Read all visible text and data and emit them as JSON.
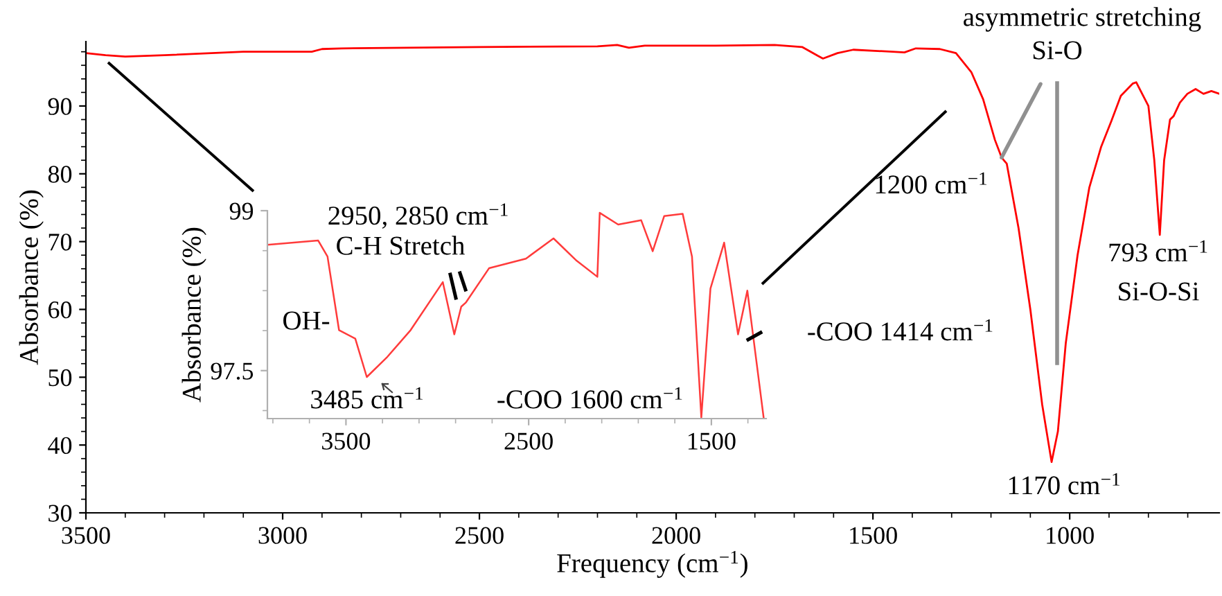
{
  "chart_data": [
    {
      "type": "line",
      "xlabel": "Frequency (cm$^{−1}$)",
      "ylabel": "Absorbance (%)",
      "color": "#ff0000",
      "x": [
        3500,
        3450,
        3400,
        3300,
        3100,
        2926,
        2900,
        2850,
        2500,
        2200,
        2150,
        2120,
        2080,
        1900,
        1750,
        1680,
        1640,
        1627,
        1590,
        1550,
        1450,
        1420,
        1391,
        1330,
        1289,
        1250,
        1220,
        1190,
        1173,
        1160,
        1130,
        1100,
        1070,
        1046,
        1030,
        1010,
        980,
        950,
        920,
        894,
        870,
        840,
        831,
        800,
        785,
        771,
        760,
        745,
        736,
        720,
        701,
        680,
        660,
        640,
        620
      ],
      "values": [
        97.8,
        97.5,
        97.3,
        97.5,
        98.0,
        98.0,
        98.4,
        98.5,
        98.7,
        98.8,
        99.0,
        98.6,
        98.9,
        98.9,
        99.0,
        98.7,
        97.4,
        97.0,
        97.8,
        98.3,
        98.0,
        97.9,
        98.5,
        98.4,
        97.8,
        95,
        91,
        85,
        82.4,
        81.5,
        72,
        60,
        46,
        37.5,
        42,
        55,
        68,
        78,
        84,
        87.8,
        91.5,
        93.3,
        93.5,
        90,
        82,
        71,
        82,
        88,
        88.5,
        90.5,
        91.8,
        92.5,
        91.8,
        92.2,
        91.8
      ],
      "xlim": [
        3500,
        620
      ],
      "ylim": [
        30,
        99.5
      ],
      "xticks": [
        3500,
        3000,
        2500,
        2000,
        1500,
        1000
      ],
      "yticks": [
        30,
        40,
        50,
        60,
        70,
        80,
        90
      ],
      "annotations": [
        "asymmetric stretching",
        {
          "text": "Si-O",
          "x": 1173,
          "y": 82.4
        },
        "1200 cm$^{−1}$",
        "1170 cm$^{−1}$",
        "793 cm$^{−1}$",
        "Si-O-Si",
        "-COO 1414 cm$^{−1}$"
      ]
    },
    {
      "type": "line",
      "ylabel": "Absorbance (%)",
      "color": "#ff3b3b",
      "x": [
        3930,
        3652,
        3601,
        3538,
        3449,
        3386,
        3273,
        3146,
        2970,
        2907,
        2869,
        2843,
        2717,
        2515,
        2364,
        2237,
        2124,
        2111,
        2010,
        1884,
        1821,
        1758,
        1657,
        1606,
        1555,
        1505,
        1430,
        1354,
        1303,
        1214
      ],
      "values": [
        98.68,
        98.72,
        98.57,
        97.88,
        97.8,
        97.44,
        97.63,
        97.88,
        98.33,
        97.84,
        98.1,
        98.14,
        98.46,
        98.55,
        98.74,
        98.53,
        98.38,
        98.98,
        98.87,
        98.91,
        98.62,
        98.95,
        98.97,
        98.57,
        97.06,
        98.27,
        98.7,
        97.84,
        98.25,
        97.06
      ],
      "xlim": [
        3930,
        1200
      ],
      "ylim": [
        97.05,
        99
      ],
      "xticks": [
        3500,
        2500,
        1500
      ],
      "yticks": [
        99,
        97.5
      ],
      "annotations": [
        "2950, 2850 cm$^{−1}$",
        "C-H Stretch",
        "OH-",
        "3485 cm$^{−1}$",
        "-COO 1600 cm$^{−1}$"
      ]
    }
  ]
}
